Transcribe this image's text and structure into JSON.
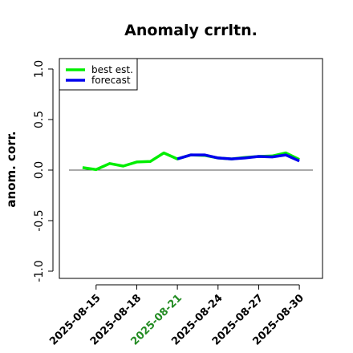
{
  "chart_data": {
    "type": "line",
    "title": "Anomaly crrltn.",
    "ylabel": "anom. corr.",
    "xlabel": "",
    "ylim": [
      -1.0,
      1.0
    ],
    "xlim": [
      "2025-08-13",
      "2025-08-31"
    ],
    "yticks": [
      "-1.0",
      "-0.5",
      "0.0",
      "0.5",
      "1.0"
    ],
    "xticks": [
      "2025-08-15",
      "2025-08-18",
      "2025-08-21",
      "2025-08-24",
      "2025-08-27",
      "2025-08-30"
    ],
    "highlight_xtick": "2025-08-21",
    "highlight_color": "#228B22",
    "reference_line": 0.0,
    "legend_position": "top-left",
    "series": [
      {
        "name": "best est.",
        "color": "#00ee00",
        "points": [
          [
            "2025-08-14",
            0.025
          ],
          [
            "2025-08-15",
            0.005
          ],
          [
            "2025-08-16",
            0.065
          ],
          [
            "2025-08-17",
            0.04
          ],
          [
            "2025-08-18",
            0.08
          ],
          [
            "2025-08-19",
            0.085
          ],
          [
            "2025-08-20",
            0.17
          ],
          [
            "2025-08-21",
            0.11
          ],
          [
            "2025-08-22",
            0.15
          ],
          [
            "2025-08-23",
            0.145
          ],
          [
            "2025-08-24",
            0.12
          ],
          [
            "2025-08-25",
            0.11
          ],
          [
            "2025-08-26",
            0.125
          ],
          [
            "2025-08-27",
            0.135
          ],
          [
            "2025-08-28",
            0.14
          ],
          [
            "2025-08-29",
            0.17
          ],
          [
            "2025-08-30",
            0.105
          ]
        ]
      },
      {
        "name": "forecast",
        "color": "#0000ee",
        "points": [
          [
            "2025-08-21",
            0.11
          ],
          [
            "2025-08-22",
            0.15
          ],
          [
            "2025-08-23",
            0.15
          ],
          [
            "2025-08-24",
            0.12
          ],
          [
            "2025-08-25",
            0.11
          ],
          [
            "2025-08-26",
            0.12
          ],
          [
            "2025-08-27",
            0.135
          ],
          [
            "2025-08-28",
            0.13
          ],
          [
            "2025-08-29",
            0.15
          ],
          [
            "2025-08-30",
            0.09
          ]
        ]
      }
    ]
  }
}
